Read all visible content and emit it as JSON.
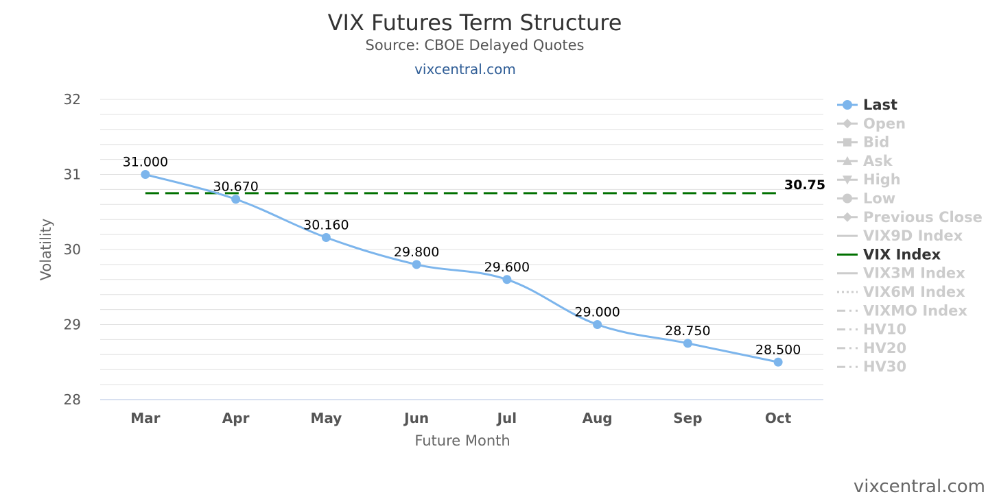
{
  "chart_data": {
    "type": "line",
    "title": "VIX Futures Term Structure",
    "subtitle": "Source: CBOE Delayed Quotes",
    "site_link": "vixcentral.com",
    "xlabel": "Future Month",
    "ylabel": "Volatility",
    "categories": [
      "Mar",
      "Apr",
      "May",
      "Jun",
      "Jul",
      "Aug",
      "Sep",
      "Oct"
    ],
    "ylim": [
      28,
      32
    ],
    "yticks": [
      "28",
      "29",
      "30",
      "31",
      "32"
    ],
    "grid": true,
    "legend_position": "right",
    "series": [
      {
        "name": "Last",
        "color": "#7cb5ec",
        "values": [
          31.0,
          30.67,
          30.16,
          29.8,
          29.6,
          29.0,
          28.75,
          28.5
        ],
        "labels": [
          "31.000",
          "30.670",
          "30.160",
          "29.800",
          "29.600",
          "29.000",
          "28.750",
          "28.500"
        ]
      },
      {
        "name": "VIX Index",
        "color": "#007000",
        "style": "dashed",
        "value": 30.75,
        "label": "30.75"
      }
    ],
    "legend": [
      {
        "name": "Last",
        "active": true,
        "marker": "circle",
        "color": "#7cb5ec"
      },
      {
        "name": "Open",
        "active": false,
        "marker": "diamond"
      },
      {
        "name": "Bid",
        "active": false,
        "marker": "square"
      },
      {
        "name": "Ask",
        "active": false,
        "marker": "triangle"
      },
      {
        "name": "High",
        "active": false,
        "marker": "triangle-down"
      },
      {
        "name": "Low",
        "active": false,
        "marker": "circle"
      },
      {
        "name": "Previous Close",
        "active": false,
        "marker": "diamond"
      },
      {
        "name": "VIX9D Index",
        "active": false,
        "marker": "line"
      },
      {
        "name": "VIX Index",
        "active": true,
        "marker": "line",
        "color": "#007000"
      },
      {
        "name": "VIX3M Index",
        "active": false,
        "marker": "line"
      },
      {
        "name": "VIX6M Index",
        "active": false,
        "marker": "dotted"
      },
      {
        "name": "VIXMO Index",
        "active": false,
        "marker": "dashdot"
      },
      {
        "name": "HV10",
        "active": false,
        "marker": "dashdot"
      },
      {
        "name": "HV20",
        "active": false,
        "marker": "dashdot"
      },
      {
        "name": "HV30",
        "active": false,
        "marker": "dashdot"
      }
    ]
  },
  "watermark": "vixcentral.com"
}
